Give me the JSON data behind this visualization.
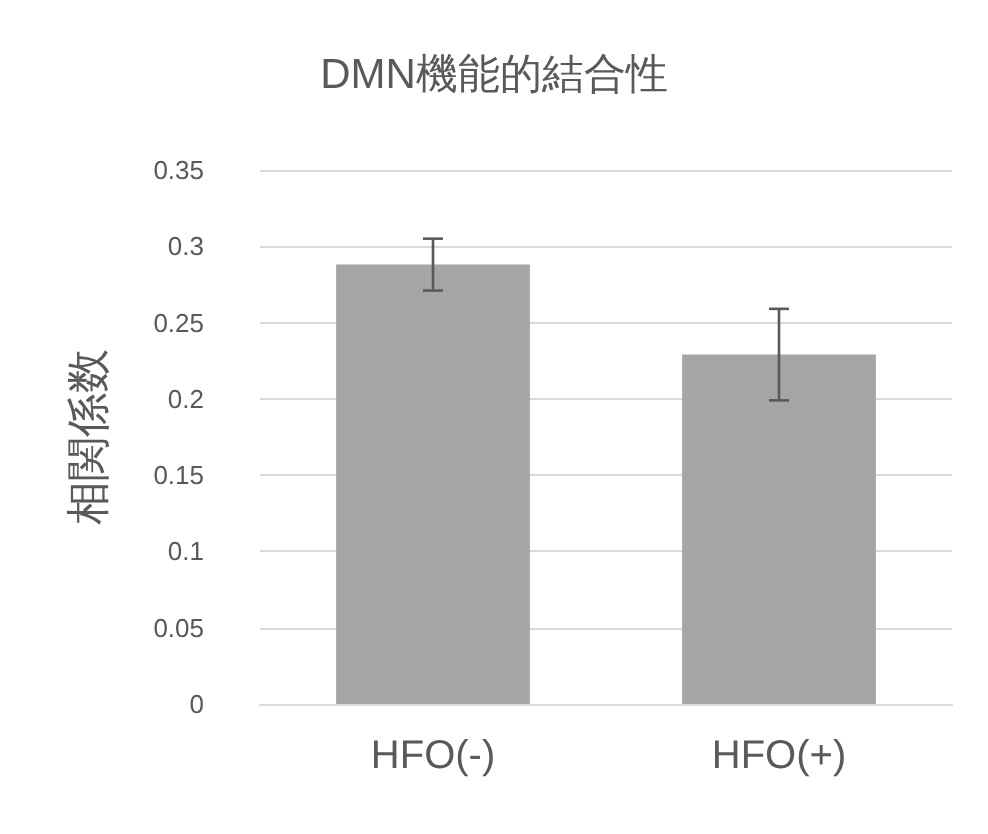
{
  "chart_data": {
    "type": "bar",
    "title": "DMN機能的結合性",
    "ylabel": "相関係数",
    "categories": [
      "HFO(-)",
      "HFO(+)"
    ],
    "series": [
      {
        "color": "#a5a5a5",
        "values": [
          0.288,
          0.229
        ],
        "errors": [
          [
            0.271,
            0.305
          ],
          [
            0.199,
            0.259
          ]
        ]
      }
    ],
    "ylim": [
      0,
      0.35
    ],
    "yticks": [
      0,
      0.05,
      0.1,
      0.15,
      0.2,
      0.25,
      0.3,
      0.35
    ],
    "grid": "y"
  }
}
